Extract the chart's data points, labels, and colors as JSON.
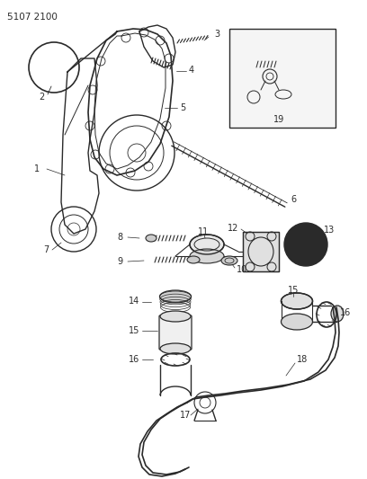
{
  "title": "5107 2100",
  "bg_color": "#ffffff",
  "lc": "#2a2a2a",
  "figsize": [
    4.08,
    5.33
  ],
  "dpi": 100
}
